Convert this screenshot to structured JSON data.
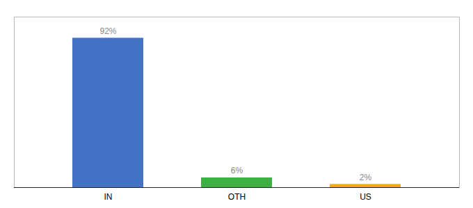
{
  "chart_data": {
    "type": "bar",
    "categories": [
      "IN",
      "OTH",
      "US"
    ],
    "values": [
      92,
      6,
      2
    ],
    "value_labels": [
      "92%",
      "6%",
      "2%"
    ],
    "colors": [
      "#4472c4",
      "#3cb043",
      "#f5a623"
    ],
    "ylim": [
      0,
      105
    ],
    "data_labels": true,
    "tick_labels": "x",
    "grid": false
  }
}
